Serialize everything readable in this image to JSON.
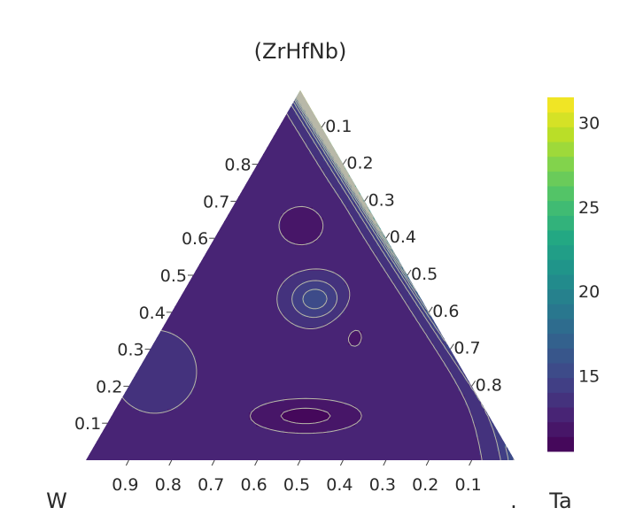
{
  "chart_data": {
    "type": "ternary-contour",
    "axes": {
      "top": {
        "label": "(ZrHfNb)",
        "ticks": [
          "0.1",
          "0.2",
          "0.3",
          "0.4",
          "0.5",
          "0.6",
          "0.7",
          "0.8"
        ]
      },
      "left": {
        "label": "W",
        "ticks": [
          "0.1",
          "0.2",
          "0.3",
          "0.4",
          "0.5",
          "0.6",
          "0.7",
          "0.8"
        ]
      },
      "right": {
        "label": "Ta",
        "ticks": [
          "0.1",
          "0.2",
          "0.3",
          "0.4",
          "0.5",
          "0.6",
          "0.7",
          "0.8",
          "0.9"
        ]
      }
    },
    "colorbar": {
      "colorscale": "viridis",
      "range": [
        10.5,
        31.5
      ],
      "ticks": [
        "15",
        "20",
        "25",
        "30"
      ],
      "tick_values": [
        15,
        20,
        25,
        30
      ],
      "levels": 24
    },
    "contour_line_color": "#b8b8a8",
    "stray_mark": "."
  }
}
